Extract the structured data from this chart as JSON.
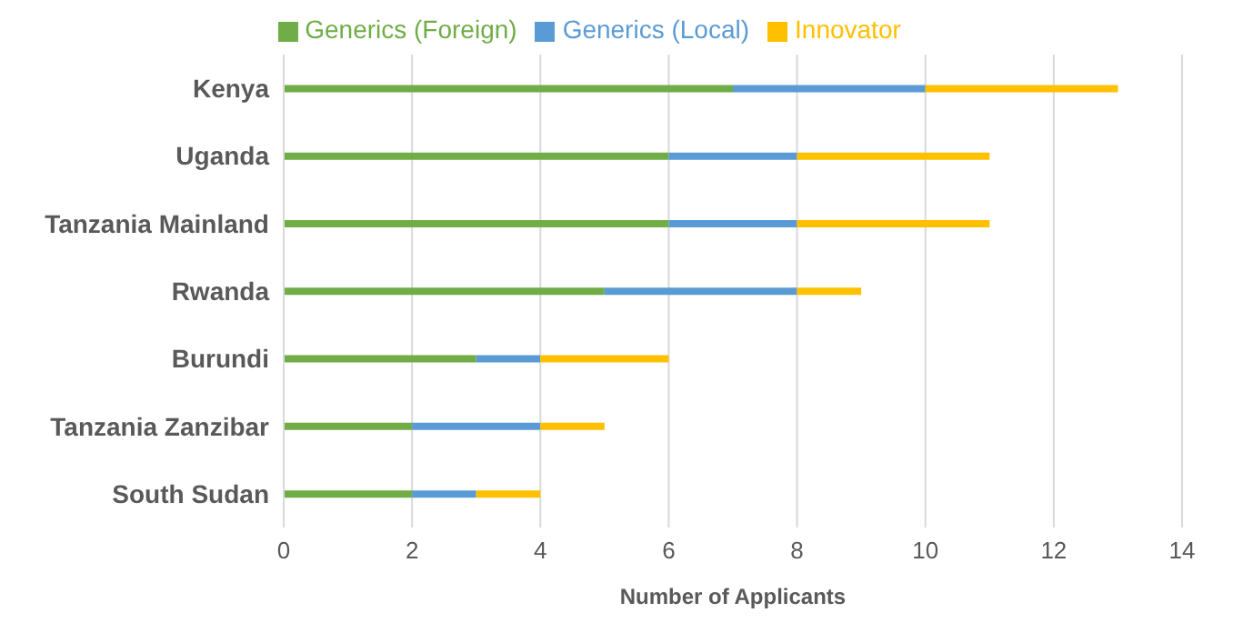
{
  "chart_data": {
    "type": "bar",
    "orientation": "horizontal",
    "stacked": true,
    "xlabel": "Number of Applicants",
    "categories": [
      "Kenya",
      "Uganda",
      "Tanzania Mainland",
      "Rwanda",
      "Burundi",
      "Tanzania Zanzibar",
      "South Sudan"
    ],
    "series": [
      {
        "name": "Generics (Foreign)",
        "color": "#70ad47",
        "values": [
          7,
          6,
          6,
          5,
          3,
          2,
          2
        ]
      },
      {
        "name": "Generics (Local)",
        "color": "#5b9bd5",
        "values": [
          3,
          2,
          2,
          3,
          1,
          2,
          1
        ]
      },
      {
        "name": "Innovator",
        "color": "#ffc000",
        "values": [
          3,
          3,
          3,
          1,
          2,
          1,
          1
        ]
      }
    ],
    "xlim": [
      0,
      14
    ],
    "xticks": [
      0,
      2,
      4,
      6,
      8,
      10,
      12,
      14
    ],
    "grid": "x",
    "legend": "top"
  }
}
